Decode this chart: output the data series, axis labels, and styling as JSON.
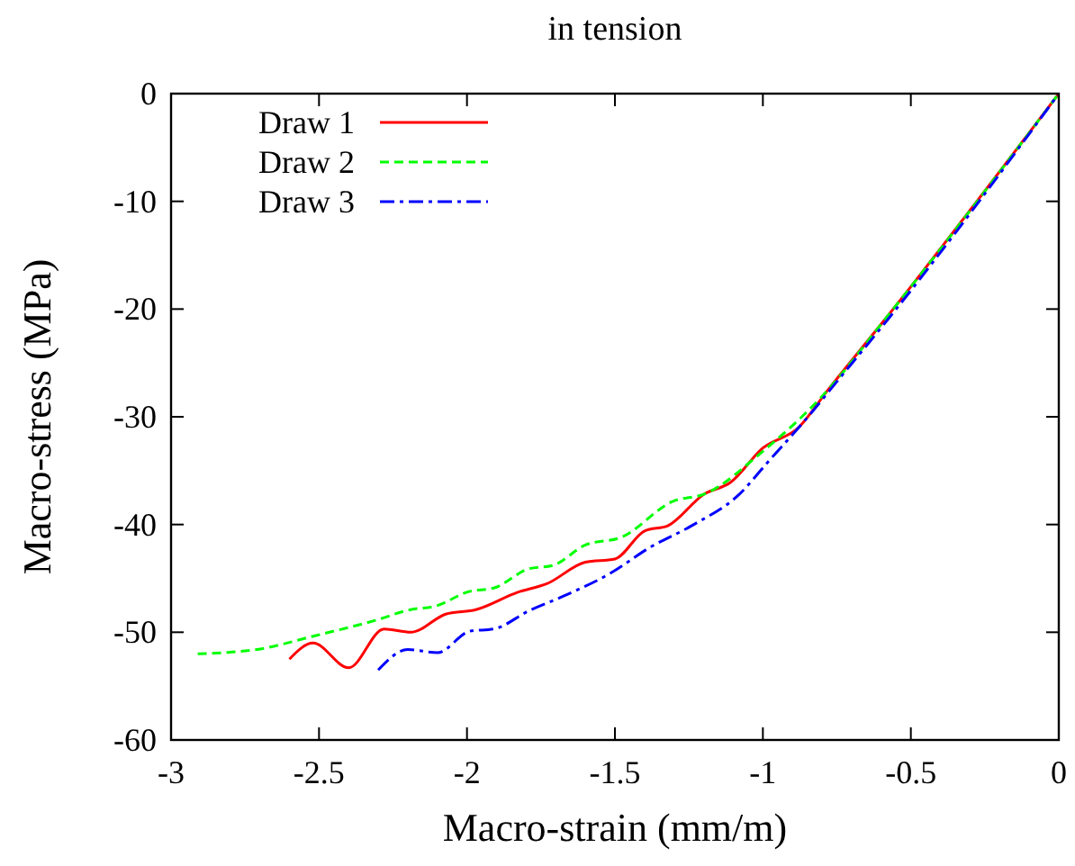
{
  "chart_data": {
    "type": "line",
    "title": "in tension",
    "xlabel": "Macro-strain (mm/m)",
    "ylabel": "Macro-stress (MPa)",
    "xlim": [
      -3,
      0
    ],
    "xticks": [
      -3,
      -2.5,
      -2,
      -1.5,
      -1,
      -0.5,
      0
    ],
    "ylim": [
      -60,
      0
    ],
    "yticks": [
      -60,
      -50,
      -40,
      -30,
      -20,
      -10,
      0
    ],
    "grid": false,
    "legend": "top left",
    "series": [
      {
        "name": "Draw 1",
        "color": "#ff0000",
        "line_style": "solid",
        "x": [
          -2.6,
          -2.52,
          -2.4,
          -2.28,
          -2.19,
          -2.07,
          -1.97,
          -1.83,
          -1.73,
          -1.6,
          -1.5,
          -1.4,
          -1.32,
          -1.2,
          -1.11,
          -1.0,
          -0.88,
          -0.78,
          -0.58,
          0
        ],
        "values": [
          -52.5,
          -51.0,
          -53.3,
          -49.7,
          -50.0,
          -48.3,
          -47.9,
          -46.3,
          -45.5,
          -43.5,
          -43.2,
          -40.6,
          -40.1,
          -37.2,
          -36.1,
          -32.9,
          -31.0,
          -27.5,
          -20.7,
          0
        ]
      },
      {
        "name": "Draw 2",
        "color": "#00ff00",
        "line_style": "dashed",
        "x": [
          -2.91,
          -2.71,
          -2.51,
          -2.31,
          -2.19,
          -2.11,
          -1.99,
          -1.91,
          -1.79,
          -1.71,
          -1.6,
          -1.48,
          -1.3,
          -1.2,
          -1.0,
          -0.8,
          -0.58,
          0
        ],
        "values": [
          -52.0,
          -51.6,
          -50.3,
          -48.9,
          -47.9,
          -47.6,
          -46.2,
          -45.9,
          -44.1,
          -43.8,
          -41.9,
          -41.2,
          -37.8,
          -37.2,
          -33.2,
          -28.1,
          -20.7,
          0
        ]
      },
      {
        "name": "Draw 3",
        "color": "#0000ff",
        "line_style": "dashdot",
        "x": [
          -2.3,
          -2.2,
          -2.1,
          -1.99,
          -1.91,
          -1.79,
          -1.67,
          -1.52,
          -1.38,
          -1.24,
          -1.08,
          -0.98,
          -0.86,
          -0.74,
          -0.57,
          0
        ],
        "values": [
          -53.5,
          -51.6,
          -51.9,
          -49.9,
          -49.7,
          -48.0,
          -46.6,
          -44.6,
          -42.1,
          -40.1,
          -37.2,
          -34.1,
          -30.4,
          -26.4,
          -20.7,
          0
        ]
      }
    ]
  }
}
